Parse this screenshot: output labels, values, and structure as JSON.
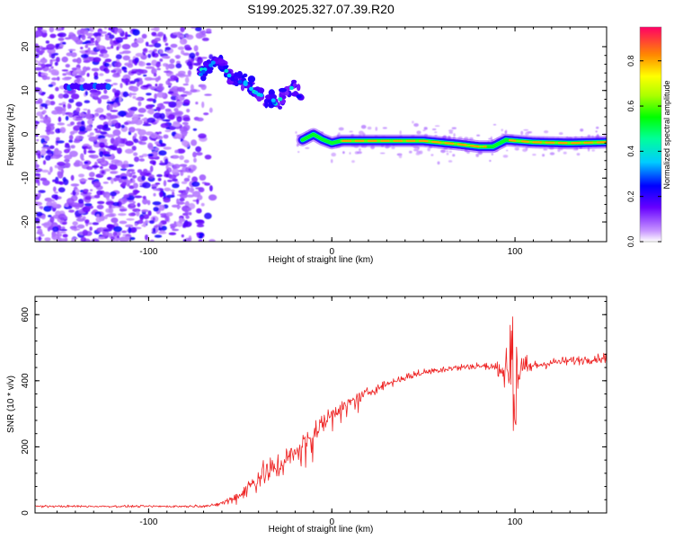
{
  "title": "S199.2025.327.07.39.R20",
  "colors": {
    "trace": "#ee2222",
    "axis": "#000000",
    "background": "#ffffff"
  },
  "chart_data": [
    {
      "type": "heatmap",
      "title": "S199.2025.327.07.39.R20",
      "xlabel": "Height of straight line (km)",
      "ylabel": "Frequency (Hz)",
      "xlim": [
        -162,
        150
      ],
      "ylim": [
        -24.5,
        24.5
      ],
      "x_ticks": [
        -100,
        0,
        100
      ],
      "y_ticks": [
        -20,
        -10,
        0,
        10,
        20
      ],
      "colorbar": {
        "label": "Normalized spectral amplitude",
        "range": [
          0,
          0.95
        ],
        "ticks": [
          "0.0",
          "0.2",
          "0.4",
          "0.6",
          "0.8"
        ]
      },
      "features": [
        {
          "name": "noise field",
          "x_range": [
            -162,
            -65
          ],
          "freq_range": [
            -24.5,
            24.5
          ],
          "amplitude": 0.15
        },
        {
          "name": "blob band",
          "x_range": [
            -145,
            -122
          ],
          "freq": 10.8,
          "amplitude": 0.3
        },
        {
          "name": "diagonal feature",
          "x": [
            -72,
            -62,
            -55,
            -48,
            -40,
            -30,
            -22,
            -16
          ],
          "freq": [
            14,
            17,
            13,
            12,
            9,
            7,
            11,
            9
          ],
          "amplitude": 0.35
        },
        {
          "name": "carrier line",
          "x": [
            -16,
            -10,
            -5,
            0,
            5,
            15,
            30,
            50,
            70,
            80,
            88,
            95,
            110,
            130,
            150
          ],
          "freq": [
            -1.3,
            0,
            -1.2,
            -2,
            -1.5,
            -1.5,
            -1.5,
            -1.5,
            -2.3,
            -2.8,
            -2.8,
            -1.3,
            -1.8,
            -2,
            -1.8
          ],
          "amplitude": 0.95
        }
      ]
    },
    {
      "type": "line",
      "xlabel": "Height of straight line (km)",
      "ylabel": "SNR (10 * v/v)",
      "xlim": [
        -162,
        150
      ],
      "ylim": [
        0,
        655
      ],
      "x_ticks": [
        -100,
        0,
        100
      ],
      "y_ticks": [
        0,
        200,
        400,
        600
      ],
      "series": [
        {
          "name": "SNR",
          "x": [
            -162,
            -140,
            -120,
            -100,
            -80,
            -65,
            -60,
            -55,
            -50,
            -45,
            -40,
            -35,
            -30,
            -25,
            -20,
            -15,
            -10,
            -5,
            0,
            10,
            20,
            30,
            40,
            50,
            60,
            70,
            80,
            90,
            100,
            110,
            120,
            130,
            140,
            150
          ],
          "values": [
            20,
            20,
            20,
            20,
            20,
            22,
            30,
            40,
            55,
            80,
            110,
            125,
            140,
            160,
            185,
            215,
            240,
            270,
            300,
            335,
            365,
            390,
            410,
            425,
            435,
            440,
            445,
            440,
            420,
            445,
            455,
            460,
            465,
            470
          ],
          "noise_amplitude": [
            6,
            6,
            6,
            6,
            6,
            8,
            15,
            25,
            35,
            55,
            80,
            80,
            75,
            60,
            60,
            55,
            50,
            45,
            40,
            30,
            25,
            25,
            20,
            20,
            20,
            20,
            20,
            25,
            150,
            30,
            25,
            25,
            25,
            25
          ]
        }
      ]
    }
  ]
}
